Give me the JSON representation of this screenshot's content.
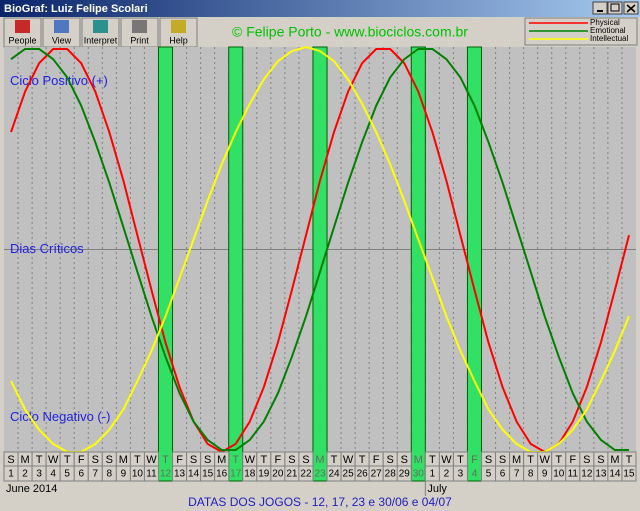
{
  "window": {
    "title": "BioGraf: Luiz Felipe Scolari"
  },
  "toolbar": [
    "People",
    "View",
    "Interpret",
    "Print",
    "Help"
  ],
  "header": "© Felipe Porto - www.biociclos.com.br",
  "chart_data": {
    "type": "line",
    "ylim": [
      -100,
      100
    ],
    "level_labels": [
      "Ciclo Positivo (+)",
      "Dias Críticos",
      "Ciclo Negativo (-)"
    ],
    "weekdays": [
      "S",
      "M",
      "T",
      "W",
      "T",
      "F",
      "S",
      "S",
      "M",
      "T",
      "W",
      "T",
      "F",
      "S",
      "S",
      "M",
      "T",
      "W",
      "T",
      "F",
      "S",
      "S",
      "M",
      "T",
      "W",
      "T",
      "F",
      "S",
      "S",
      "M",
      "T",
      "W",
      "T",
      "F",
      "S",
      "S",
      "M",
      "T",
      "W",
      "T",
      "F",
      "S",
      "S",
      "M",
      "T"
    ],
    "categories": [
      "1",
      "2",
      "3",
      "4",
      "5",
      "6",
      "7",
      "8",
      "9",
      "10",
      "11",
      "12",
      "13",
      "14",
      "15",
      "16",
      "17",
      "18",
      "19",
      "20",
      "21",
      "22",
      "23",
      "24",
      "25",
      "26",
      "27",
      "28",
      "29",
      "30",
      "1",
      "2",
      "3",
      "4",
      "5",
      "6",
      "7",
      "8",
      "9",
      "10",
      "11",
      "12",
      "13",
      "14",
      "15"
    ],
    "months": [
      "June 2014",
      "July"
    ],
    "game_day_index": [
      11,
      16,
      22,
      29,
      33
    ],
    "series": [
      {
        "name": "Physical",
        "color": "#ff0000",
        "values": [
          58,
          78,
          92,
          99,
          99,
          92,
          78,
          58,
          34,
          7,
          -20,
          -46,
          -68,
          -85,
          -96,
          -100,
          -96,
          -85,
          -68,
          -46,
          -20,
          7,
          34,
          58,
          78,
          92,
          99,
          99,
          92,
          78,
          58,
          34,
          7,
          -20,
          -46,
          -68,
          -85,
          -96,
          -100,
          -96,
          -85,
          -68,
          -46,
          -20,
          7
        ]
      },
      {
        "name": "Emotional",
        "color": "#008000",
        "values": [
          94,
          99,
          99,
          94,
          85,
          71,
          53,
          33,
          11,
          -11,
          -33,
          -53,
          -71,
          -85,
          -94,
          -99,
          -99,
          -94,
          -85,
          -71,
          -53,
          -33,
          -11,
          11,
          33,
          53,
          71,
          85,
          94,
          99,
          99,
          94,
          85,
          71,
          53,
          33,
          11,
          -11,
          -33,
          -53,
          -71,
          -85,
          -94,
          -99,
          -99
        ]
      },
      {
        "name": "Intellectual",
        "color": "#ffff00",
        "values": [
          -65,
          -79,
          -89,
          -96,
          -100,
          -100,
          -96,
          -89,
          -79,
          -65,
          -50,
          -33,
          -14,
          5,
          24,
          42,
          58,
          72,
          84,
          93,
          98,
          100,
          98,
          93,
          84,
          72,
          58,
          42,
          24,
          5,
          -14,
          -33,
          -50,
          -65,
          -79,
          -89,
          -96,
          -100,
          -100,
          -96,
          -89,
          -79,
          -65,
          -50,
          -33
        ]
      }
    ],
    "footer": "DATAS DOS JOGOS - 12, 17, 23 e 30/06 e 04/07"
  }
}
